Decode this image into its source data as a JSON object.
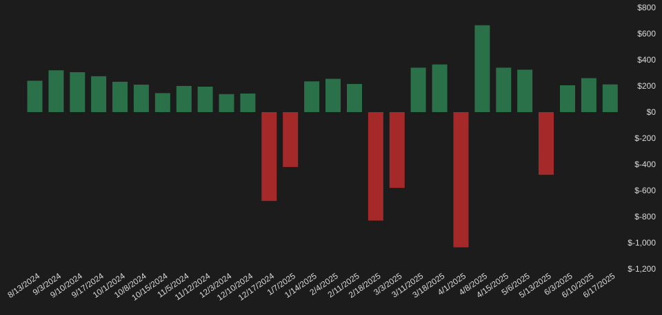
{
  "chart_data": {
    "type": "bar",
    "categories": [
      "8/13/2024",
      "9/3/2024",
      "9/10/2024",
      "9/17/2024",
      "10/1/2024",
      "10/8/2024",
      "10/15/2024",
      "11/5/2024",
      "11/12/2024",
      "12/3/2024",
      "12/10/2024",
      "12/17/2024",
      "1/7/2025",
      "1/14/2025",
      "2/4/2025",
      "2/11/2025",
      "2/18/2025",
      "3/3/2025",
      "3/11/2025",
      "3/18/2025",
      "4/1/2025",
      "4/8/2025",
      "4/15/2025",
      "5/6/2025",
      "5/13/2025",
      "6/3/2025",
      "6/10/2025",
      "6/17/2025"
    ],
    "values": [
      240,
      320,
      305,
      275,
      232,
      210,
      145,
      200,
      195,
      138,
      142,
      -680,
      -420,
      235,
      255,
      215,
      -830,
      -580,
      340,
      365,
      -1035,
      665,
      340,
      325,
      -480,
      205,
      260,
      212
    ],
    "y_ticks": [
      "$800",
      "$600",
      "$400",
      "$200",
      "$0",
      "$-200",
      "$-400",
      "$-600",
      "$-800",
      "$-1,000",
      "$-1,200"
    ],
    "ylim": [
      -1200,
      800
    ],
    "y_axis_position": "right",
    "grid": false,
    "legend": "none",
    "title": "",
    "xlabel": "",
    "ylabel": "",
    "colors": {
      "positive": "#2a7048",
      "negative": "#a42928",
      "tick_text": "#d9d9d9",
      "background": "#1c1c1c"
    }
  }
}
